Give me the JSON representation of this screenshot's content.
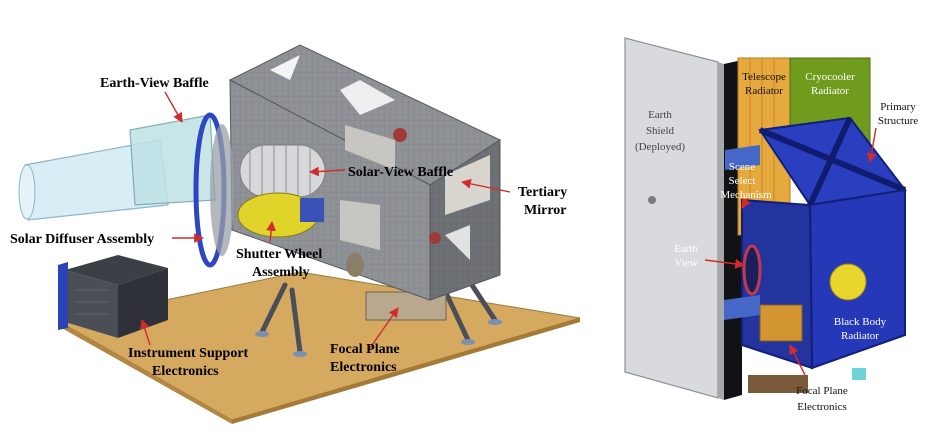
{
  "left_diagram": {
    "labels": {
      "earth_view_baffle": "Earth-View Baffle",
      "solar_view_baffle": "Solar-View Baffle",
      "tertiary_mirror_1": "Tertiary",
      "tertiary_mirror_2": "Mirror",
      "solar_diffuser_assembly": "Solar Diffuser Assembly",
      "shutter_wheel_1": "Shutter Wheel",
      "shutter_wheel_2": "Assembly",
      "instrument_support_1": "Instrument Support",
      "instrument_support_2": "Electronics",
      "focal_plane_1": "Focal Plane",
      "focal_plane_2": "Electronics"
    }
  },
  "right_diagram": {
    "labels": {
      "earth_shield_1": "Earth",
      "earth_shield_2": "Shield",
      "earth_shield_3": "(Deployed)",
      "telescope_radiator_1": "Telescope",
      "telescope_radiator_2": "Radiator",
      "cryocooler_radiator_1": "Cryocooler",
      "cryocooler_radiator_2": "Radiator",
      "primary_structure_1": "Primary",
      "primary_structure_2": "Structure",
      "scene_select_1": "Scene",
      "scene_select_2": "Select",
      "scene_select_3": "Mechanism",
      "earth_view_1": "Earth",
      "earth_view_2": "View",
      "black_body_1": "Black Body",
      "black_body_2": "Radiator",
      "focal_plane_1": "Focal Plane",
      "focal_plane_2": "Electronics"
    }
  },
  "colors": {
    "arrow": "#d22b2b",
    "table": "#d6a960",
    "housing": "#8a8d93",
    "blue_structure": "#2438b8",
    "cryocooler": "#6f9c1c",
    "telescope_radiator": "#e6a93d",
    "shield": "#d9dadd"
  }
}
